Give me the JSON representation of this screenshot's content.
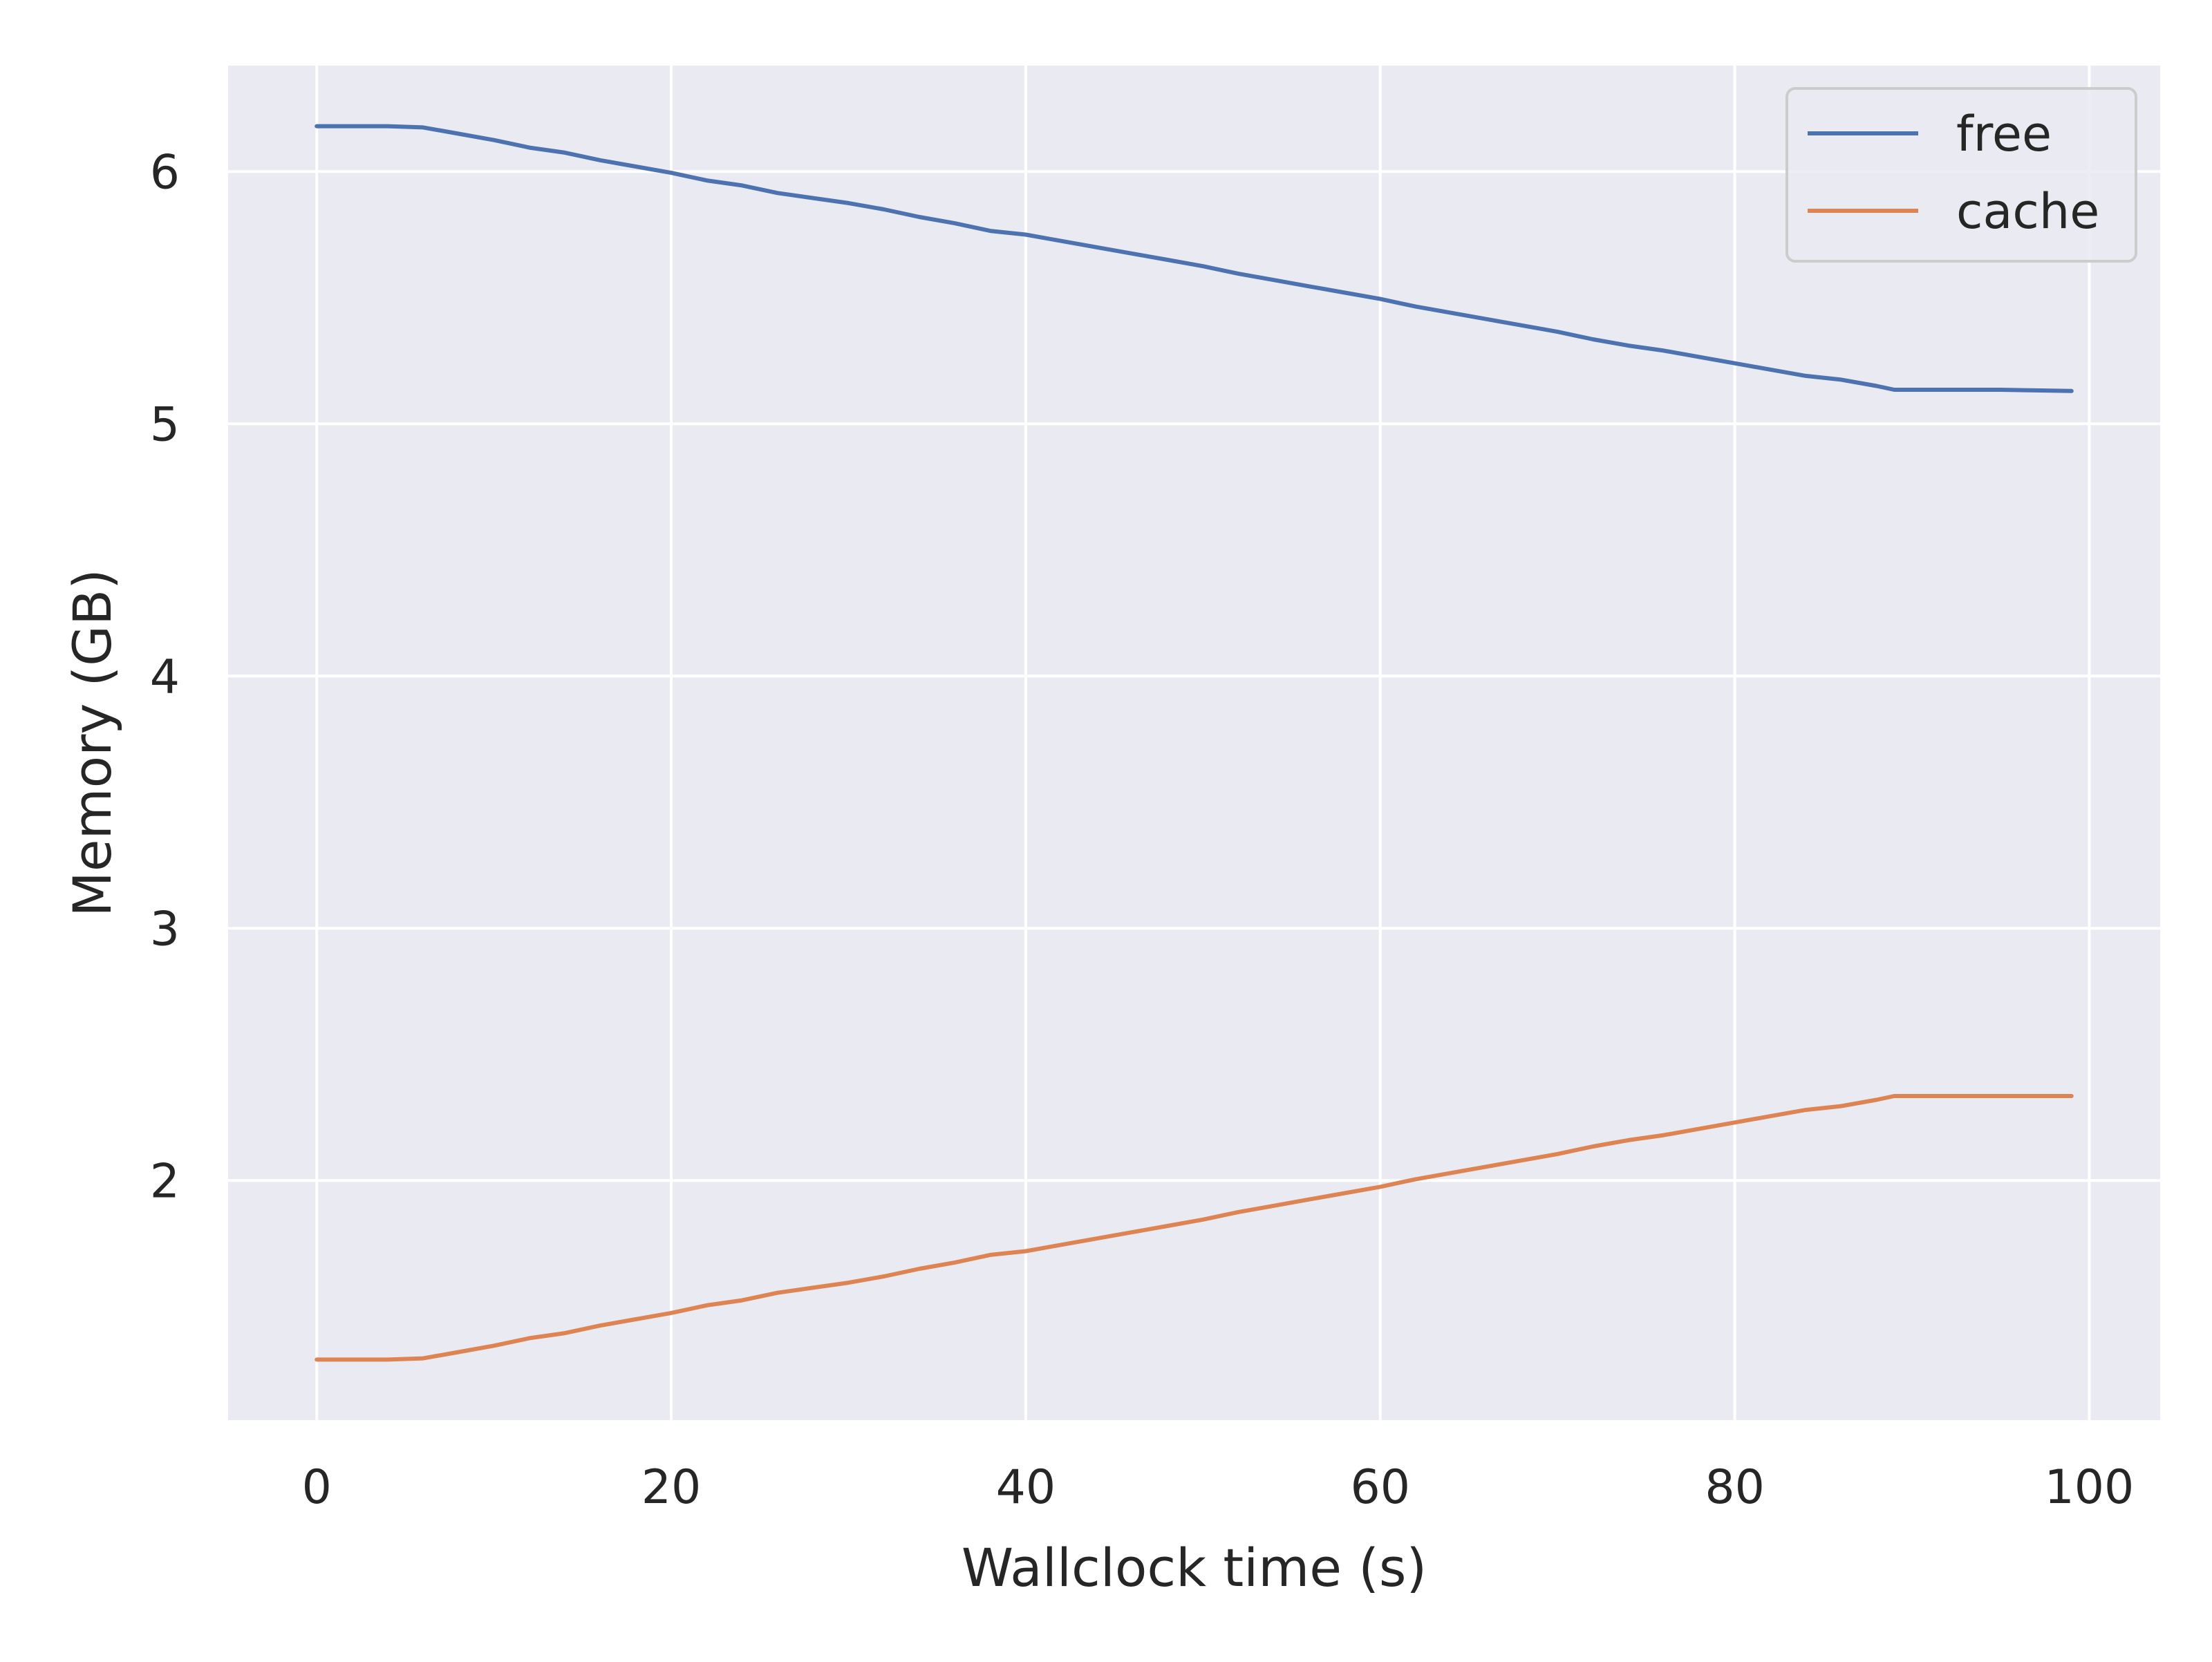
{
  "chart_data": {
    "type": "line",
    "title": "",
    "xlabel": "Wallclock time (s)",
    "ylabel": "Memory (GB)",
    "xlim": [
      -5,
      104
    ],
    "ylim": [
      1.05,
      6.42
    ],
    "xticks": [
      0,
      20,
      40,
      60,
      80,
      100
    ],
    "yticks": [
      2,
      3,
      4,
      5,
      6
    ],
    "xtick_labels": [
      "0",
      "20",
      "40",
      "60",
      "80",
      "100"
    ],
    "ytick_labels": [
      "2",
      "3",
      "4",
      "5",
      "6"
    ],
    "grid": true,
    "legend_position": "top-right",
    "background": "#eaeaf2",
    "grid_color": "#ffffff",
    "series": [
      {
        "name": "free",
        "color": "#4c72b0",
        "points": [
          [
            0,
            6.18
          ],
          [
            4,
            6.18
          ],
          [
            6,
            6.175
          ],
          [
            8,
            6.15
          ],
          [
            10,
            6.125
          ],
          [
            12,
            6.095
          ],
          [
            14,
            6.075
          ],
          [
            16,
            6.045
          ],
          [
            18,
            6.02
          ],
          [
            20,
            5.995
          ],
          [
            22,
            5.965
          ],
          [
            24,
            5.945
          ],
          [
            26,
            5.915
          ],
          [
            28,
            5.895
          ],
          [
            30,
            5.875
          ],
          [
            32,
            5.85
          ],
          [
            34,
            5.82
          ],
          [
            36,
            5.795
          ],
          [
            38,
            5.765
          ],
          [
            40,
            5.75
          ],
          [
            42,
            5.725
          ],
          [
            44,
            5.7
          ],
          [
            46,
            5.675
          ],
          [
            48,
            5.65
          ],
          [
            50,
            5.625
          ],
          [
            52,
            5.595
          ],
          [
            54,
            5.57
          ],
          [
            56,
            5.545
          ],
          [
            58,
            5.52
          ],
          [
            60,
            5.495
          ],
          [
            62,
            5.465
          ],
          [
            64,
            5.44
          ],
          [
            66,
            5.415
          ],
          [
            68,
            5.39
          ],
          [
            70,
            5.365
          ],
          [
            72,
            5.335
          ],
          [
            74,
            5.31
          ],
          [
            76,
            5.29
          ],
          [
            78,
            5.265
          ],
          [
            80,
            5.24
          ],
          [
            82,
            5.215
          ],
          [
            84,
            5.19
          ],
          [
            86,
            5.175
          ],
          [
            88,
            5.15
          ],
          [
            89,
            5.135
          ],
          [
            92,
            5.135
          ],
          [
            95,
            5.135
          ],
          [
            99,
            5.13
          ]
        ]
      },
      {
        "name": "cache",
        "color": "#dd8452",
        "points": [
          [
            0,
            1.29
          ],
          [
            4,
            1.29
          ],
          [
            6,
            1.295
          ],
          [
            8,
            1.32
          ],
          [
            10,
            1.345
          ],
          [
            12,
            1.375
          ],
          [
            14,
            1.395
          ],
          [
            16,
            1.425
          ],
          [
            18,
            1.45
          ],
          [
            20,
            1.475
          ],
          [
            22,
            1.505
          ],
          [
            24,
            1.525
          ],
          [
            26,
            1.555
          ],
          [
            28,
            1.575
          ],
          [
            30,
            1.595
          ],
          [
            32,
            1.62
          ],
          [
            34,
            1.65
          ],
          [
            36,
            1.675
          ],
          [
            38,
            1.705
          ],
          [
            40,
            1.72
          ],
          [
            42,
            1.745
          ],
          [
            44,
            1.77
          ],
          [
            46,
            1.795
          ],
          [
            48,
            1.82
          ],
          [
            50,
            1.845
          ],
          [
            52,
            1.875
          ],
          [
            54,
            1.9
          ],
          [
            56,
            1.925
          ],
          [
            58,
            1.95
          ],
          [
            60,
            1.975
          ],
          [
            62,
            2.005
          ],
          [
            64,
            2.03
          ],
          [
            66,
            2.055
          ],
          [
            68,
            2.08
          ],
          [
            70,
            2.105
          ],
          [
            72,
            2.135
          ],
          [
            74,
            2.16
          ],
          [
            76,
            2.18
          ],
          [
            78,
            2.205
          ],
          [
            80,
            2.23
          ],
          [
            82,
            2.255
          ],
          [
            84,
            2.28
          ],
          [
            86,
            2.295
          ],
          [
            88,
            2.32
          ],
          [
            89,
            2.335
          ],
          [
            92,
            2.335
          ],
          [
            95,
            2.335
          ],
          [
            99,
            2.335
          ]
        ]
      }
    ]
  }
}
